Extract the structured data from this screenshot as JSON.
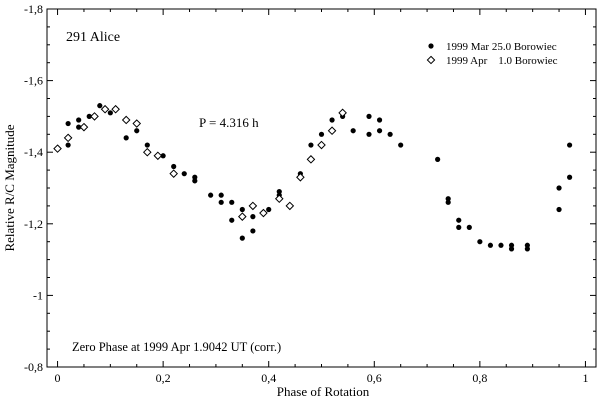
{
  "chart_data": {
    "type": "scatter",
    "title": "291 Alice",
    "xlabel": "Phase of Rotation",
    "ylabel": "Relative R/C Magnitude",
    "xlim": [
      -0.02,
      1.02
    ],
    "ylim": [
      -0.8,
      -1.8
    ],
    "y_inverted": true,
    "x_ticks": [
      0,
      0.2,
      0.4,
      0.6,
      0.8,
      1
    ],
    "x_tick_labels": [
      "0",
      "0,2",
      "0,4",
      "0,6",
      "0,8",
      "1"
    ],
    "y_ticks": [
      -1.8,
      -1.6,
      -1.4,
      -1.2,
      -1.0,
      -0.8
    ],
    "y_tick_labels": [
      "-1,8",
      "-1,6",
      "-1,4",
      "-1,2",
      "-1",
      "-0,8"
    ],
    "grid": false,
    "legend_position": "top-right",
    "annotations": {
      "period": "P = 4.316 h",
      "zero_phase": "Zero Phase at 1999 Apr 1.9042 UT (corr.)"
    },
    "series": [
      {
        "name": "1999 Mar 25.0 Borowiec",
        "marker": "filled-circle",
        "points": [
          [
            0.0,
            -1.41
          ],
          [
            0.02,
            -1.48
          ],
          [
            0.02,
            -1.42
          ],
          [
            0.04,
            -1.49
          ],
          [
            0.04,
            -1.47
          ],
          [
            0.06,
            -1.5
          ],
          [
            0.08,
            -1.53
          ],
          [
            0.1,
            -1.51
          ],
          [
            0.13,
            -1.44
          ],
          [
            0.15,
            -1.46
          ],
          [
            0.17,
            -1.42
          ],
          [
            0.2,
            -1.39
          ],
          [
            0.22,
            -1.36
          ],
          [
            0.22,
            -1.34
          ],
          [
            0.24,
            -1.34
          ],
          [
            0.26,
            -1.33
          ],
          [
            0.26,
            -1.32
          ],
          [
            0.29,
            -1.28
          ],
          [
            0.31,
            -1.28
          ],
          [
            0.31,
            -1.26
          ],
          [
            0.33,
            -1.26
          ],
          [
            0.33,
            -1.21
          ],
          [
            0.35,
            -1.24
          ],
          [
            0.35,
            -1.16
          ],
          [
            0.37,
            -1.22
          ],
          [
            0.37,
            -1.18
          ],
          [
            0.4,
            -1.24
          ],
          [
            0.42,
            -1.29
          ],
          [
            0.42,
            -1.28
          ],
          [
            0.44,
            -1.25
          ],
          [
            0.46,
            -1.34
          ],
          [
            0.48,
            -1.42
          ],
          [
            0.5,
            -1.45
          ],
          [
            0.52,
            -1.49
          ],
          [
            0.54,
            -1.51
          ],
          [
            0.54,
            -1.5
          ],
          [
            0.56,
            -1.46
          ],
          [
            0.59,
            -1.5
          ],
          [
            0.59,
            -1.45
          ],
          [
            0.61,
            -1.49
          ],
          [
            0.61,
            -1.46
          ],
          [
            0.63,
            -1.45
          ],
          [
            0.65,
            -1.42
          ],
          [
            0.72,
            -1.38
          ],
          [
            0.74,
            -1.27
          ],
          [
            0.74,
            -1.26
          ],
          [
            0.76,
            -1.21
          ],
          [
            0.76,
            -1.19
          ],
          [
            0.78,
            -1.19
          ],
          [
            0.8,
            -1.15
          ],
          [
            0.82,
            -1.14
          ],
          [
            0.84,
            -1.14
          ],
          [
            0.86,
            -1.13
          ],
          [
            0.86,
            -1.14
          ],
          [
            0.89,
            -1.14
          ],
          [
            0.89,
            -1.13
          ],
          [
            0.95,
            -1.3
          ],
          [
            0.95,
            -1.24
          ],
          [
            0.97,
            -1.42
          ],
          [
            0.97,
            -1.33
          ]
        ]
      },
      {
        "name": "1999 Apr    1.0 Borowiec",
        "marker": "open-diamond",
        "points": [
          [
            0.0,
            -1.41
          ],
          [
            0.02,
            -1.44
          ],
          [
            0.05,
            -1.47
          ],
          [
            0.07,
            -1.5
          ],
          [
            0.09,
            -1.52
          ],
          [
            0.11,
            -1.52
          ],
          [
            0.13,
            -1.49
          ],
          [
            0.15,
            -1.48
          ],
          [
            0.17,
            -1.4
          ],
          [
            0.19,
            -1.39
          ],
          [
            0.22,
            -1.34
          ],
          [
            0.35,
            -1.22
          ],
          [
            0.37,
            -1.25
          ],
          [
            0.39,
            -1.23
          ],
          [
            0.42,
            -1.27
          ],
          [
            0.44,
            -1.25
          ],
          [
            0.46,
            -1.33
          ],
          [
            0.48,
            -1.38
          ],
          [
            0.5,
            -1.42
          ],
          [
            0.52,
            -1.46
          ],
          [
            0.54,
            -1.51
          ]
        ]
      }
    ]
  }
}
